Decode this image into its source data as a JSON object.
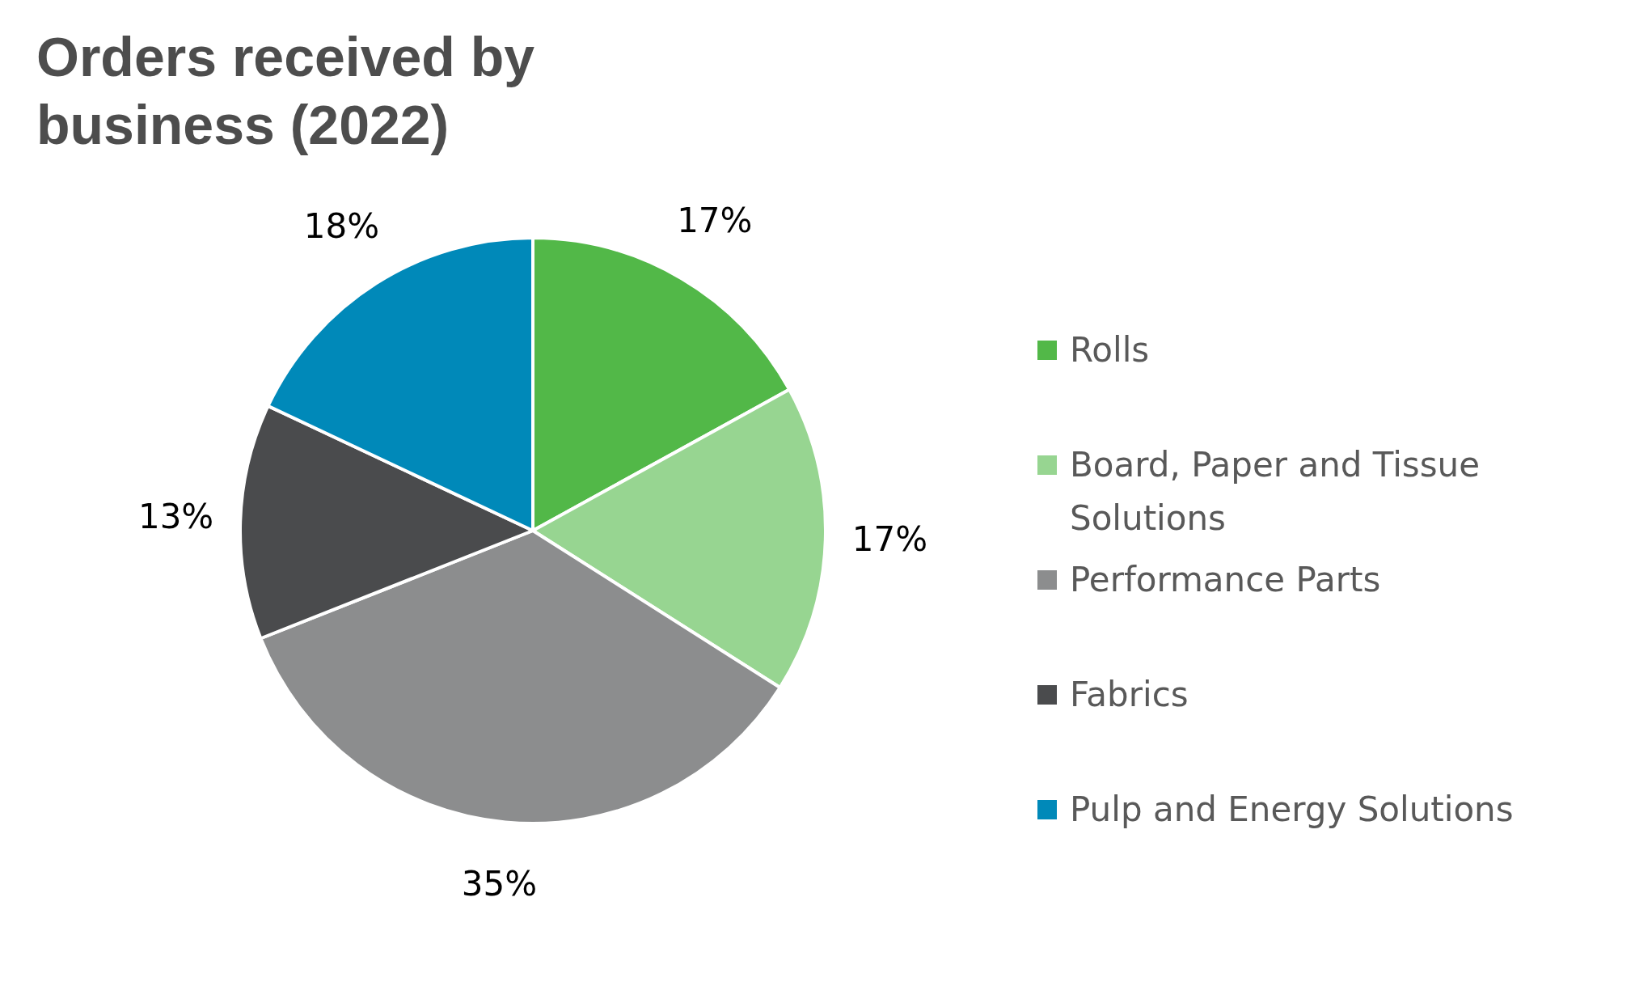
{
  "chart_data": {
    "type": "pie",
    "title": "Orders received by business (2022)",
    "categories": [
      "Rolls",
      "Board, Paper and Tissue Solutions",
      "Performance Parts",
      "Fabrics",
      "Pulp and Energy Solutions"
    ],
    "values": [
      17,
      17,
      35,
      13,
      18
    ],
    "colors": [
      "#52b848",
      "#97d591",
      "#8c8d8e",
      "#4a4b4d",
      "#0089b9"
    ],
    "value_labels": [
      "17%",
      "17%",
      "35%",
      "13%",
      "18%"
    ],
    "legend": "right"
  }
}
